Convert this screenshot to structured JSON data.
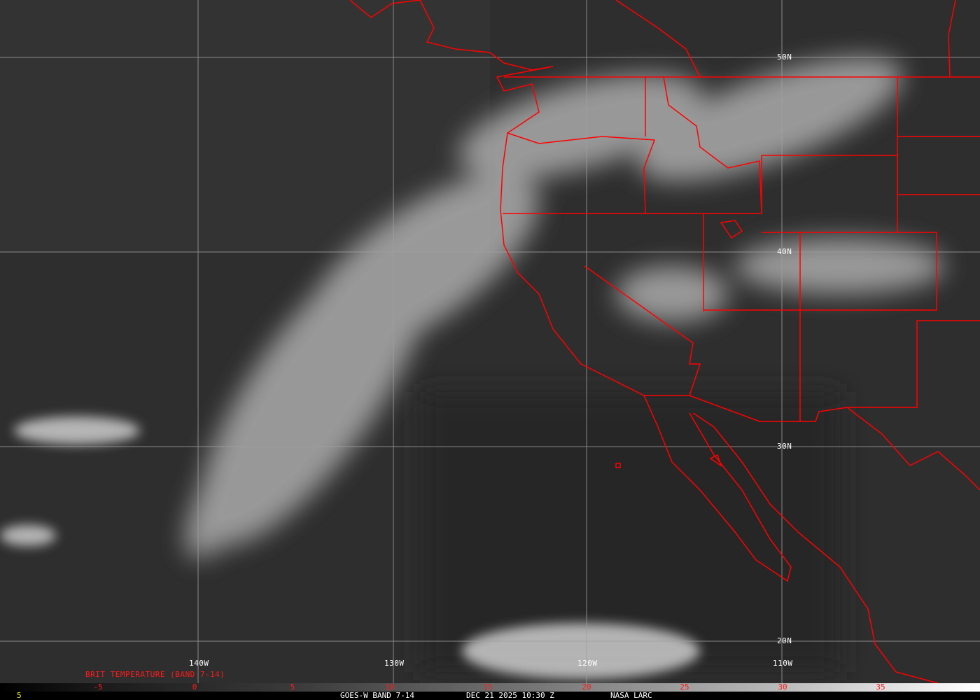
{
  "grid": {
    "longitudes": [
      "140W",
      "130W",
      "120W",
      "110W"
    ],
    "latitudes": [
      "50N",
      "40N",
      "30N",
      "20N"
    ]
  },
  "legend": {
    "title": "BRIT TEMPERATURE (BAND 7-14)",
    "ticks": [
      "-5",
      "0",
      "5",
      "10",
      "15",
      "20",
      "25",
      "30",
      "35"
    ],
    "left_value": "5"
  },
  "footer": {
    "satellite": "GOES-W BAND 7-14",
    "datetime": "DEC 21 2025 10:30 Z",
    "source": "NASA LARC"
  },
  "colors": {
    "boundaries": "#ff0000",
    "grid": "#a0a0a0",
    "legend_text": "#ff1a1a",
    "left_value": "#ffff00"
  }
}
